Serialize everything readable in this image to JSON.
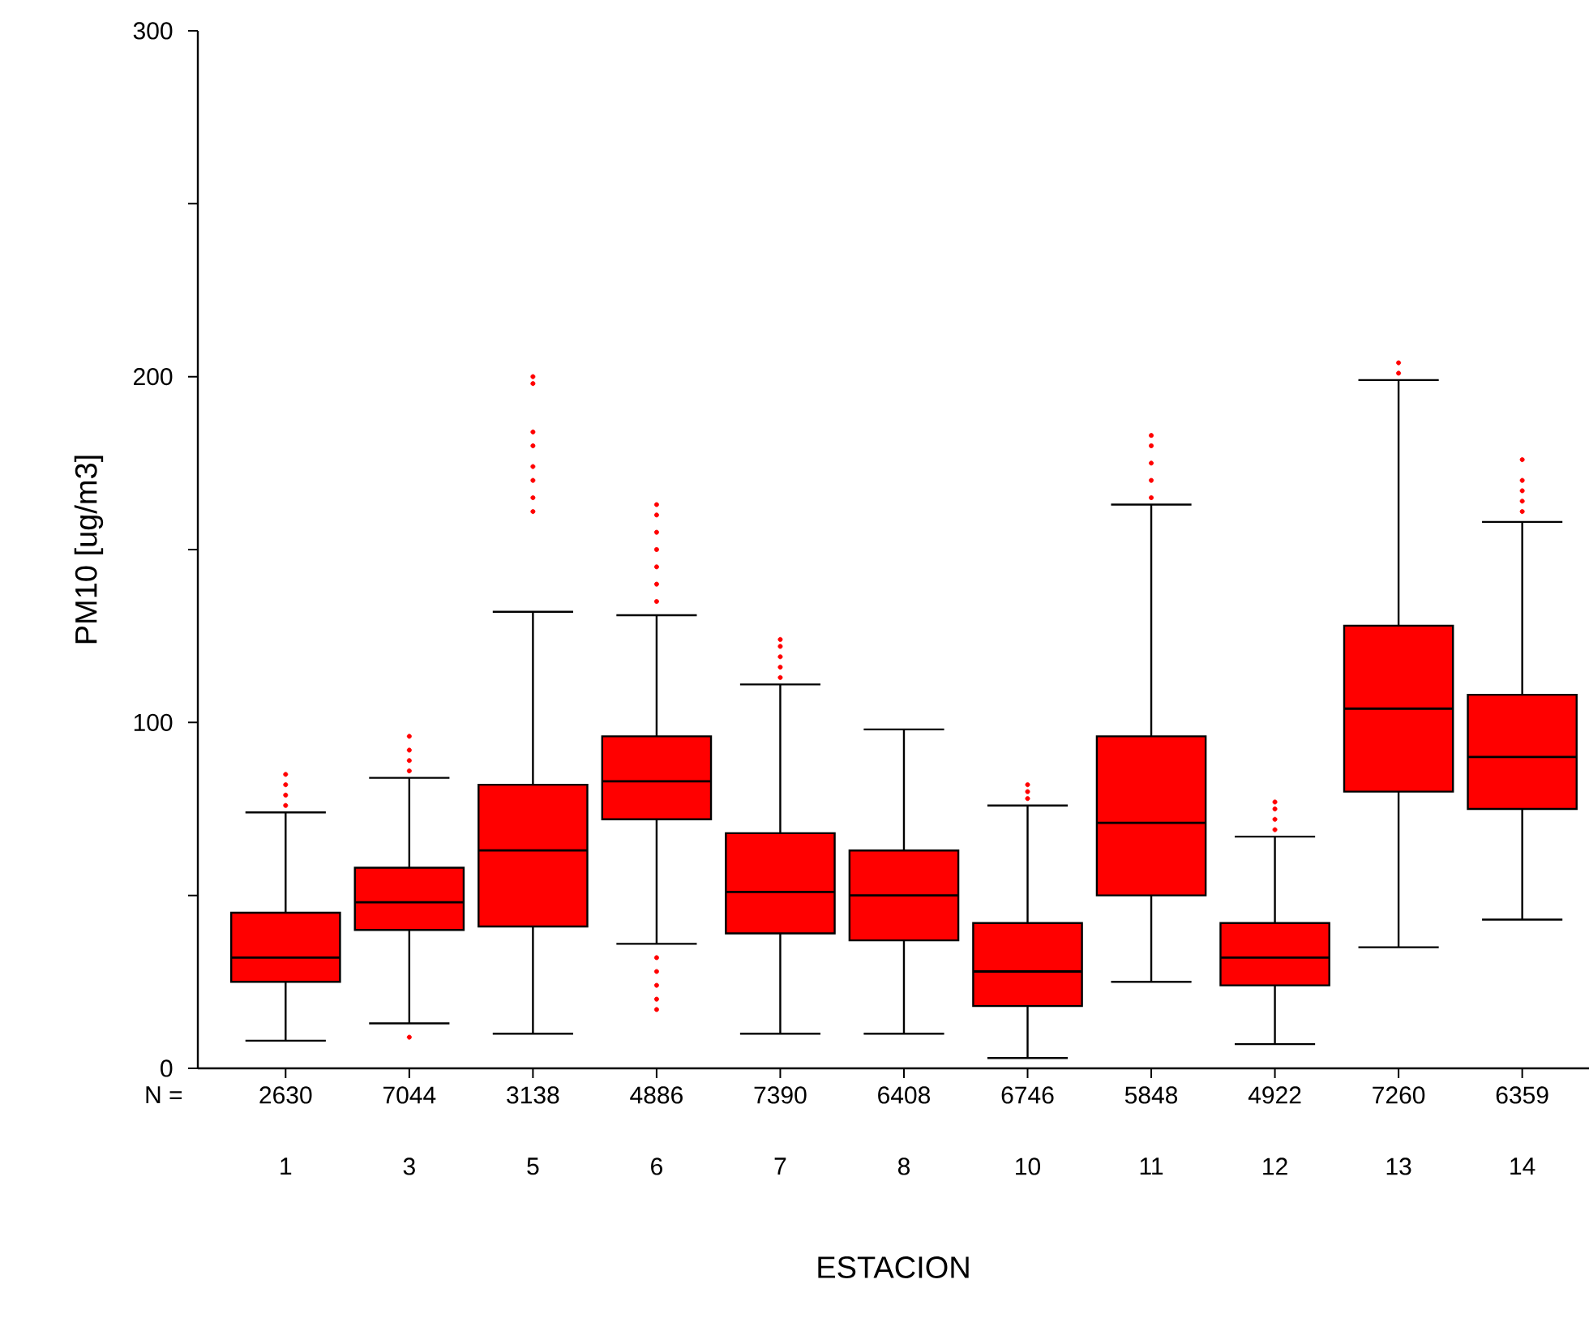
{
  "chart_data": {
    "type": "box",
    "xlabel": "ESTACION",
    "ylabel": "PM10 [ug/m3]",
    "categories": [
      "1",
      "3",
      "5",
      "6",
      "7",
      "8",
      "10",
      "11",
      "12",
      "13",
      "14"
    ],
    "ylim": [
      0,
      300
    ],
    "yticks": [
      0,
      {
        "value": 50,
        "label": null
      },
      100,
      {
        "value": 150,
        "label": null
      },
      200,
      {
        "value": 250,
        "label": null
      },
      300
    ],
    "series": [
      {
        "color": "#ff0000",
        "boxes": [
          {
            "low": 8,
            "q1": 25,
            "median": 32,
            "q3": 45,
            "high": 74,
            "outliers": [
              76,
              79,
              82,
              85
            ]
          },
          {
            "low": 13,
            "q1": 40,
            "median": 48,
            "q3": 58,
            "high": 84,
            "outliers": [
              9,
              86,
              89,
              92,
              96
            ]
          },
          {
            "low": 10,
            "q1": 41,
            "median": 63,
            "q3": 82,
            "high": 132,
            "outliers": [
              161,
              165,
              170,
              174,
              180,
              184,
              198,
              200
            ]
          },
          {
            "low": 36,
            "q1": 72,
            "median": 83,
            "q3": 96,
            "high": 131,
            "outliers": [
              17,
              20,
              24,
              28,
              32,
              135,
              140,
              145,
              150,
              155,
              160,
              163
            ]
          },
          {
            "low": 10,
            "q1": 39,
            "median": 51,
            "q3": 68,
            "high": 111,
            "outliers": [
              113,
              116,
              119,
              122,
              124
            ]
          },
          {
            "low": 10,
            "q1": 37,
            "median": 50,
            "q3": 63,
            "high": 98
          },
          {
            "low": 3,
            "q1": 18,
            "median": 28,
            "q3": 42,
            "high": 76,
            "outliers": [
              78,
              80,
              82
            ]
          },
          {
            "low": 25,
            "q1": 50,
            "median": 71,
            "q3": 96,
            "high": 163,
            "outliers": [
              165,
              170,
              175,
              180,
              183
            ]
          },
          {
            "low": 7,
            "q1": 24,
            "median": 32,
            "q3": 42,
            "high": 67,
            "outliers": [
              69,
              72,
              75,
              77
            ]
          },
          {
            "low": 35,
            "q1": 80,
            "median": 104,
            "q3": 128,
            "high": 199,
            "outliers": [
              201,
              204
            ]
          },
          {
            "low": 43,
            "q1": 75,
            "median": 90,
            "q3": 108,
            "high": 158,
            "outliers": [
              161,
              164,
              167,
              170,
              176
            ]
          }
        ]
      }
    ],
    "annotations": [
      "N =",
      "2630",
      "7044",
      "3138",
      "4886",
      "7390",
      "6408",
      "6746",
      "5848",
      "4922",
      "7260",
      "6359"
    ]
  }
}
